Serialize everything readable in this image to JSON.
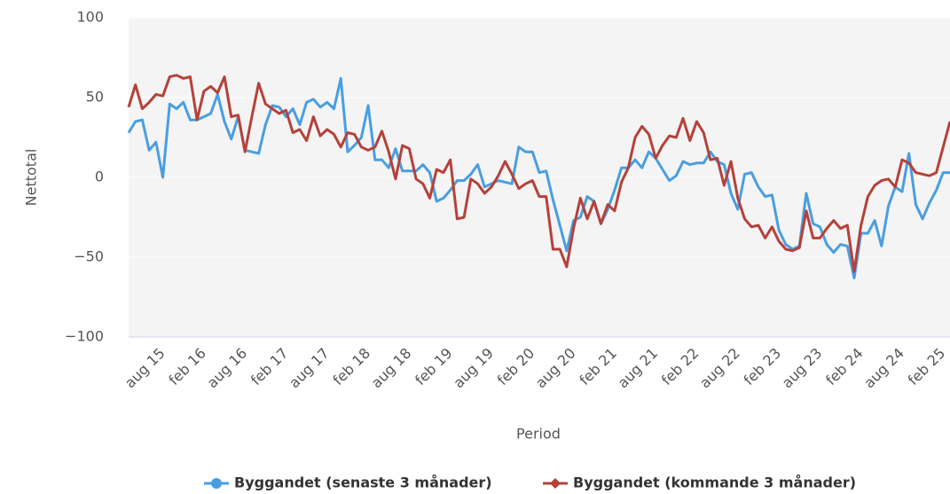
{
  "chart_data": {
    "type": "line",
    "x_label": "Period",
    "y_label": "Nettotal",
    "categories": [
      null,
      null,
      null,
      null,
      null,
      "aug 15",
      null,
      null,
      null,
      null,
      null,
      "feb 16",
      null,
      null,
      null,
      null,
      null,
      "aug 16",
      null,
      null,
      null,
      null,
      null,
      "feb 17",
      null,
      null,
      null,
      null,
      null,
      "aug 17",
      null,
      null,
      null,
      null,
      null,
      "feb 18",
      null,
      null,
      null,
      null,
      null,
      "aug 18",
      null,
      null,
      null,
      null,
      null,
      "feb 19",
      null,
      null,
      null,
      null,
      null,
      "aug 19",
      null,
      null,
      null,
      null,
      null,
      "feb 20",
      null,
      null,
      null,
      null,
      null,
      "aug 20",
      null,
      null,
      null,
      null,
      null,
      "feb 21",
      null,
      null,
      null,
      null,
      null,
      "aug 21",
      null,
      null,
      null,
      null,
      null,
      "feb 22",
      null,
      null,
      null,
      null,
      null,
      "aug 22",
      null,
      null,
      null,
      null,
      null,
      "feb 23",
      null,
      null,
      null,
      null,
      null,
      "aug 23",
      null,
      null,
      null,
      null,
      null,
      "feb 24",
      null,
      null,
      null,
      null,
      null,
      "aug 24",
      null,
      null,
      null,
      null,
      null,
      "feb 25",
      null
    ],
    "series": [
      {
        "name": "Byggandet (senaste 3 månader)",
        "color": "#4a9ee0",
        "marker": "circle",
        "values": [
          28,
          35,
          36,
          17,
          22,
          0,
          46,
          43,
          47,
          36,
          36,
          38,
          40,
          52,
          35,
          24,
          38,
          17,
          16,
          15,
          33,
          45,
          44,
          38,
          43,
          33,
          47,
          49,
          44,
          47,
          43,
          62,
          16,
          20,
          25,
          45,
          11,
          11,
          6,
          18,
          4,
          4,
          4,
          8,
          3,
          -15,
          -13,
          -8,
          -2,
          -2,
          2,
          8,
          -6,
          -4,
          -2,
          -3,
          -4,
          19,
          16,
          16,
          3,
          4,
          -14,
          -30,
          -46,
          -27,
          -25,
          -12,
          -15,
          -29,
          -20,
          -8,
          6,
          6,
          11,
          6,
          16,
          12,
          5,
          -2,
          1,
          10,
          8,
          9,
          9,
          16,
          10,
          8,
          -10,
          -20,
          2,
          3,
          -6,
          -12,
          -11,
          -33,
          -42,
          -45,
          -43,
          -10,
          -29,
          -31,
          -42,
          -47,
          -42,
          -43,
          -63,
          -35,
          -35,
          -27,
          -43,
          -18,
          -6,
          -9,
          15,
          -17,
          -26,
          -16,
          -8,
          3,
          3
        ]
      },
      {
        "name": "Byggandet (kommande 3 månader)",
        "color": "#b5413a",
        "marker": "diamond",
        "values": [
          44,
          58,
          43,
          47,
          52,
          51,
          63,
          64,
          62,
          63,
          36,
          54,
          57,
          53,
          63,
          38,
          39,
          16,
          38,
          59,
          46,
          43,
          40,
          42,
          28,
          30,
          23,
          38,
          26,
          30,
          27,
          19,
          28,
          27,
          19,
          17,
          19,
          29,
          16,
          -1,
          20,
          18,
          -1,
          -4,
          -13,
          5,
          3,
          11,
          -26,
          -25,
          -1,
          -4,
          -10,
          -6,
          1,
          10,
          2,
          -7,
          -4,
          -2,
          -12,
          -12,
          -45,
          -45,
          -56,
          -32,
          -13,
          -26,
          -15,
          -29,
          -17,
          -21,
          -3,
          6,
          25,
          32,
          27,
          12,
          20,
          26,
          25,
          37,
          23,
          35,
          28,
          11,
          12,
          -5,
          10,
          -13,
          -26,
          -31,
          -30,
          -38,
          -31,
          -40,
          -45,
          -46,
          -44,
          -21,
          -38,
          -38,
          -32,
          -27,
          -32,
          -30,
          -59,
          -30,
          -12,
          -5,
          -2,
          -1,
          -6,
          11,
          9,
          3,
          2,
          1,
          3,
          19,
          35
        ]
      }
    ],
    "ylim": [
      -100,
      100
    ],
    "yticks": [
      {
        "value": -100,
        "label": "−100"
      },
      {
        "value": -50,
        "label": "−50"
      },
      0,
      50,
      100
    ],
    "grid": true,
    "legend": "bottom"
  }
}
